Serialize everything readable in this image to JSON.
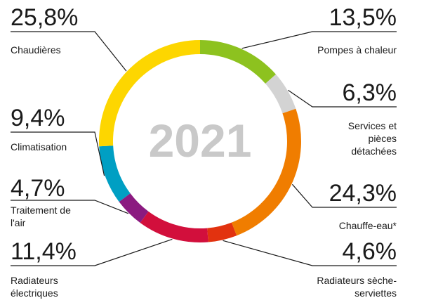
{
  "chart_data": {
    "type": "donut",
    "title": "2021",
    "categories": [
      "Pompes à chaleur",
      "Services et pièces détachées",
      "Chauffe-eau*",
      "Radiateurs sèche-serviettes",
      "Radiateurs électriques",
      "Traitement de l'air",
      "Climatisation",
      "Chaudières"
    ],
    "values": [
      13.5,
      6.3,
      24.3,
      4.6,
      11.4,
      4.7,
      9.4,
      25.8
    ],
    "value_labels": [
      "13,5%",
      "6,3%",
      "24,3%",
      "4,6%",
      "11,4%",
      "4,7%",
      "9,4%",
      "25,8%"
    ],
    "colors": [
      "#8dc21f",
      "#d3d3d3",
      "#f07d00",
      "#e2320f",
      "#d20f3c",
      "#8b1a80",
      "#009fc3",
      "#fdd600"
    ]
  }
}
